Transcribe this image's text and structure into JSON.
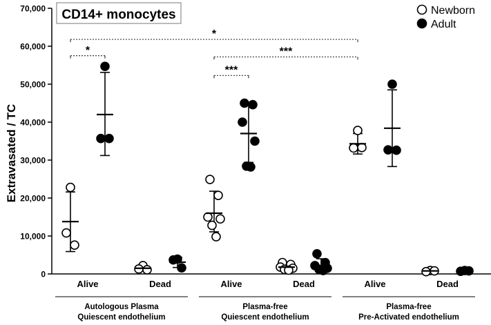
{
  "chart_data": {
    "type": "scatter",
    "title": "CD14+ monocytes",
    "ylabel": "Extravasated / TC",
    "xlabel": "",
    "ylim": [
      0,
      70000
    ],
    "yticks": [
      0,
      10000,
      20000,
      30000,
      40000,
      50000,
      60000,
      70000
    ],
    "ytick_labels": [
      "0",
      "10,000",
      "20,000",
      "30,000",
      "40,000",
      "50,000",
      "60,000",
      "70,000"
    ],
    "grid": false,
    "legend_position": "top-right",
    "legend": [
      {
        "name": "Newborn",
        "marker": "open-circle"
      },
      {
        "name": "Adult",
        "marker": "filled-circle"
      }
    ],
    "groups": [
      {
        "line1": "Autologous Plasma",
        "line2": "Quiescent endothelium",
        "categories": [
          "Alive",
          "Dead"
        ]
      },
      {
        "line1": "Plasma-free",
        "line2": "Quiescent endothelium",
        "categories": [
          "Alive",
          "Dead"
        ]
      },
      {
        "line1": "Plasma-free",
        "line2": "Pre-Activated endothelium",
        "categories": [
          "Alive",
          "Dead"
        ]
      }
    ],
    "series": [
      {
        "series": "Newborn",
        "group": 0,
        "category": "Alive",
        "points": [
          22800,
          10800,
          7600
        ],
        "mean": 13800,
        "sd_low": 5900,
        "sd_high": 21600
      },
      {
        "series": "Adult",
        "group": 0,
        "category": "Alive",
        "points": [
          54700,
          35700,
          35700
        ],
        "mean": 42000,
        "sd_low": 31200,
        "sd_high": 53100
      },
      {
        "series": "Newborn",
        "group": 0,
        "category": "Dead",
        "points": [
          2200,
          1300,
          1100
        ],
        "mean": 1500,
        "sd_low": 900,
        "sd_high": 2100
      },
      {
        "series": "Adult",
        "group": 0,
        "category": "Dead",
        "points": [
          3900,
          3700,
          1600
        ],
        "mean": 3100,
        "sd_low": 1700,
        "sd_high": 4400
      },
      {
        "series": "Newborn",
        "group": 1,
        "category": "Alive",
        "points": [
          24900,
          20700,
          15000,
          14500,
          12800,
          9800
        ],
        "mean": 16000,
        "sd_low": 11100,
        "sd_high": 21800
      },
      {
        "series": "Adult",
        "group": 1,
        "category": "Alive",
        "points": [
          45000,
          44600,
          40000,
          35000,
          28400,
          28200
        ],
        "mean": 37000,
        "sd_low": 29400,
        "sd_high": 44800
      },
      {
        "series": "Newborn",
        "group": 1,
        "category": "Dead",
        "points": [
          3000,
          2500,
          1800,
          1500,
          1200,
          1000
        ],
        "mean": 1800,
        "sd_low": 1000,
        "sd_high": 2800
      },
      {
        "series": "Adult",
        "group": 1,
        "category": "Dead",
        "points": [
          5300,
          3000,
          2200,
          1500,
          1200,
          900
        ],
        "mean": 2200,
        "sd_low": 700,
        "sd_high": 4000
      },
      {
        "series": "Newborn",
        "group": 2,
        "category": "Alive",
        "points": [
          37800,
          33200,
          33300
        ],
        "mean": 34300,
        "sd_low": 31600,
        "sd_high": 37000
      },
      {
        "series": "Adult",
        "group": 2,
        "category": "Alive",
        "points": [
          50000,
          32700,
          32600
        ],
        "mean": 38400,
        "sd_low": 28300,
        "sd_high": 48500
      },
      {
        "series": "Newborn",
        "group": 2,
        "category": "Dead",
        "points": [
          900,
          600,
          800
        ],
        "mean": 800,
        "sd_low": 600,
        "sd_high": 1000
      },
      {
        "series": "Adult",
        "group": 2,
        "category": "Dead",
        "points": [
          900,
          700,
          800
        ],
        "mean": 800,
        "sd_low": 600,
        "sd_high": 1000
      }
    ],
    "significance": [
      {
        "label": "*",
        "from": "Newborn Autologous Alive",
        "to": "Adult Autologous Alive",
        "y": 57500
      },
      {
        "label": "*",
        "from": "Newborn Autologous Alive",
        "to": "Newborn Pre-Activated Alive",
        "y": 61800
      },
      {
        "label": "***",
        "from": "Newborn Plasma-free Quiescent Alive",
        "to": "Adult Plasma-free Quiescent Alive",
        "y": 52300
      },
      {
        "label": "***",
        "from": "Newborn Plasma-free Quiescent Alive",
        "to": "Newborn Pre-Activated Alive",
        "y": 57200
      }
    ]
  }
}
